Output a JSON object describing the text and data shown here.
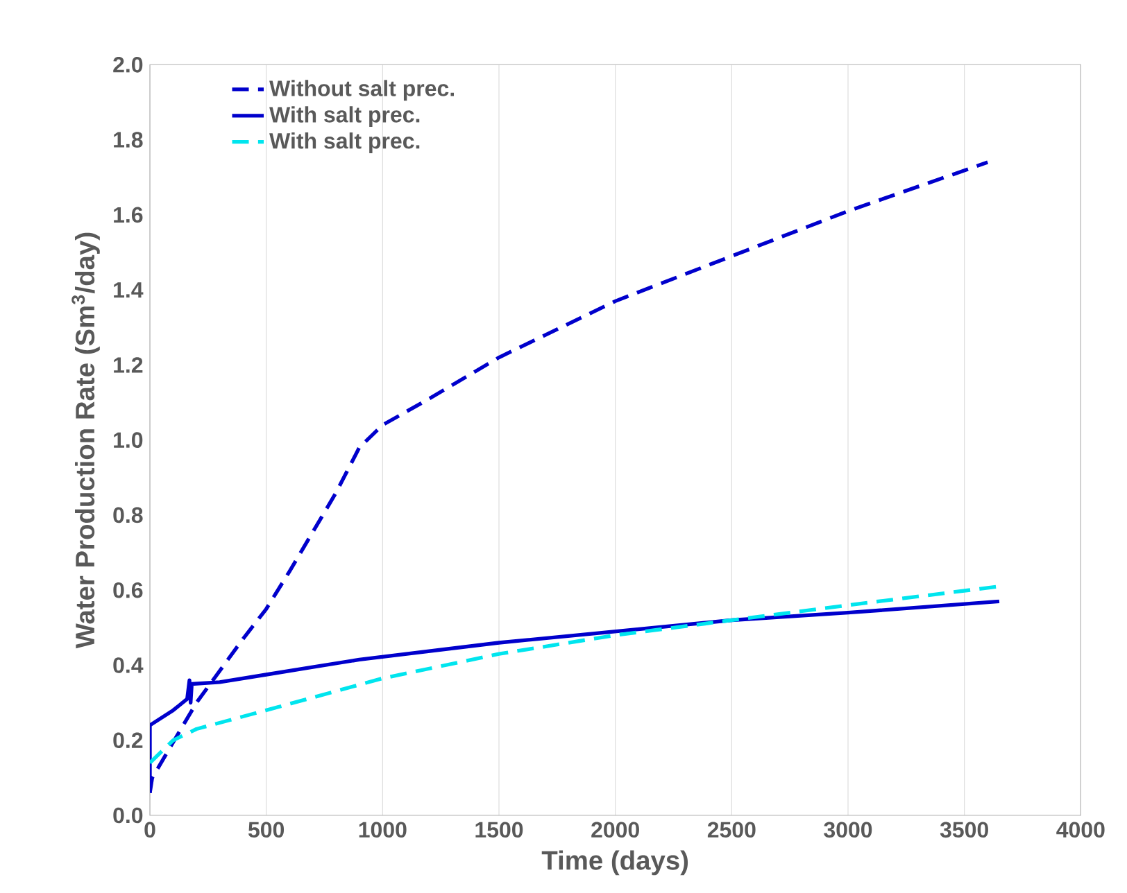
{
  "chart_data": {
    "type": "line",
    "xlabel": "Time (days)",
    "ylabel": "Water Production Rate (Sm$^{3}$/day)",
    "xlim": [
      0,
      4000
    ],
    "ylim": [
      0,
      2.0
    ],
    "xticks": [
      0,
      500,
      1000,
      1500,
      2000,
      2500,
      3000,
      3500,
      4000
    ],
    "yticks": [
      {
        "value": 0,
        "label": "0.0"
      },
      {
        "value": 0.2,
        "label": "0.2"
      },
      {
        "value": 0.4,
        "label": "0.4"
      },
      {
        "value": 0.6,
        "label": "0.6"
      },
      {
        "value": 0.8,
        "label": "0.8"
      },
      {
        "value": 1.0,
        "label": "1.0"
      },
      {
        "value": 1.2,
        "label": "1.2"
      },
      {
        "value": 1.4,
        "label": "1.4"
      },
      {
        "value": 1.6,
        "label": "1.6"
      },
      {
        "value": 1.8,
        "label": "1.8"
      },
      {
        "value": 2.0,
        "label": "2.0"
      }
    ],
    "grid": "x",
    "legend": "top left",
    "marker": "none",
    "series": [
      {
        "name": "Without salt prec.",
        "color": "#0000cc",
        "line_style": "dashed",
        "x": [
          0,
          10,
          200,
          400,
          500,
          600,
          800,
          900,
          1000,
          1200,
          1500,
          2000,
          2500,
          3000,
          3600
        ],
        "values": [
          0.06,
          0.1,
          0.3,
          0.47,
          0.55,
          0.65,
          0.86,
          0.98,
          1.04,
          1.11,
          1.22,
          1.37,
          1.49,
          1.61,
          1.74
        ]
      },
      {
        "name": "With salt prec.",
        "color": "#0000cc",
        "line_style": "solid",
        "x": [
          0,
          0,
          100,
          160,
          170,
          175,
          180,
          300,
          500,
          700,
          900,
          1500,
          2000,
          2500,
          3000,
          3650
        ],
        "values": [
          0.06,
          0.24,
          0.28,
          0.31,
          0.36,
          0.3,
          0.35,
          0.355,
          0.375,
          0.395,
          0.415,
          0.46,
          0.49,
          0.52,
          0.54,
          0.57
        ]
      },
      {
        "name": "With salt prec.",
        "color": "#00e5ee",
        "line_style": "dashed",
        "x": [
          0,
          100,
          200,
          500,
          1000,
          1500,
          2000,
          2500,
          3000,
          3650
        ],
        "values": [
          0.14,
          0.2,
          0.23,
          0.28,
          0.365,
          0.43,
          0.48,
          0.52,
          0.56,
          0.61
        ]
      }
    ]
  }
}
